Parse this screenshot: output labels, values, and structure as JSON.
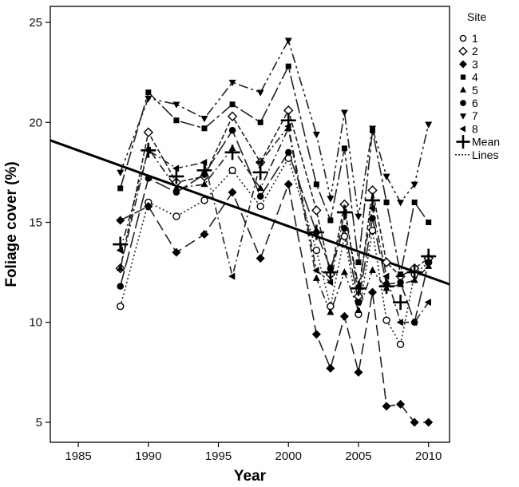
{
  "chart_data": {
    "type": "line",
    "xlabel": "Year",
    "ylabel": "Foliage cover (%)",
    "xlim": [
      1983,
      2011.5
    ],
    "ylim": [
      4,
      25.8
    ],
    "xticks": [
      1985,
      1990,
      1995,
      2000,
      2005,
      2010
    ],
    "yticks": [
      5,
      10,
      15,
      20,
      25
    ],
    "grid": false,
    "legend": {
      "title": "Site",
      "placement": "right",
      "line_label": "Lines"
    },
    "series": [
      {
        "name": "1",
        "marker": "open-circle",
        "dash": "2,3",
        "x": [
          1988,
          1990,
          1992,
          1994,
          1996,
          1998,
          2000,
          2002,
          2003,
          2004,
          2005,
          2006,
          2007,
          2008,
          2009,
          2010
        ],
        "y": [
          10.8,
          16.0,
          15.3,
          16.1,
          17.6,
          15.8,
          18.2,
          13.6,
          10.8,
          14.3,
          10.4,
          14.6,
          10.1,
          8.9,
          12.4,
          13.0
        ]
      },
      {
        "name": "2",
        "marker": "open-diamond",
        "dash": "6,3",
        "x": [
          1988,
          1990,
          1992,
          1994,
          1996,
          1998,
          2000,
          2002,
          2003,
          2004,
          2005,
          2006,
          2007,
          2008,
          2009,
          2010
        ],
        "y": [
          12.7,
          19.5,
          17.0,
          17.3,
          20.3,
          18.0,
          20.6,
          15.6,
          12.4,
          15.9,
          11.3,
          16.6,
          13.0,
          12.3,
          12.7,
          13.2
        ]
      },
      {
        "name": "3",
        "marker": "filled-diamond",
        "dash": "14,6",
        "x": [
          1988,
          1990,
          1992,
          1994,
          1996,
          1998,
          2000,
          2002,
          2003,
          2004,
          2005,
          2006,
          2007,
          2008,
          2009,
          2010
        ],
        "y": [
          15.1,
          15.8,
          13.5,
          14.4,
          16.5,
          13.2,
          16.9,
          9.4,
          7.7,
          10.3,
          7.5,
          11.5,
          5.8,
          5.9,
          5.0,
          5.0
        ]
      },
      {
        "name": "4",
        "marker": "filled-square",
        "dash": "18,4,4,4",
        "x": [
          1988,
          1990,
          1992,
          1994,
          1996,
          1998,
          2000,
          2002,
          2003,
          2004,
          2005,
          2006,
          2007,
          2008,
          2009,
          2010
        ],
        "y": [
          16.7,
          21.5,
          20.1,
          19.7,
          20.9,
          20.0,
          22.8,
          16.9,
          15.1,
          18.7,
          13.0,
          19.6,
          16.0,
          12.4,
          16.0,
          15.0
        ]
      },
      {
        "name": "5",
        "marker": "filled-triangle-up",
        "dash": "10,4,2,4",
        "x": [
          1988,
          1990,
          1992,
          1994,
          1996,
          1998,
          2000,
          2002,
          2003,
          2004,
          2005,
          2006,
          2007,
          2008,
          2009,
          2010
        ],
        "y": [
          12.7,
          18.7,
          16.7,
          16.9,
          18.7,
          16.7,
          19.7,
          12.2,
          10.5,
          12.5,
          10.6,
          12.6,
          11.7,
          11.9,
          12.1,
          12.8
        ]
      },
      {
        "name": "6",
        "marker": "filled-circle",
        "dash": "20,5",
        "x": [
          1988,
          1990,
          1992,
          1994,
          1996,
          1998,
          2000,
          2002,
          2003,
          2004,
          2005,
          2006,
          2007,
          2008,
          2009,
          2010
        ],
        "y": [
          11.8,
          17.2,
          16.5,
          17.4,
          19.6,
          16.3,
          18.5,
          14.5,
          12.7,
          14.7,
          11.0,
          15.2,
          11.9,
          12.0,
          10.0,
          13.0
        ]
      },
      {
        "name": "7",
        "marker": "filled-triangle-down",
        "dash": "12,4,3,4,3,4",
        "x": [
          1988,
          1990,
          1992,
          1994,
          1996,
          1998,
          2000,
          2002,
          2003,
          2004,
          2005,
          2006,
          2007,
          2008,
          2009,
          2010
        ],
        "y": [
          17.5,
          21.2,
          20.9,
          20.2,
          22.0,
          21.5,
          24.1,
          19.4,
          16.2,
          20.5,
          15.3,
          19.7,
          17.3,
          16.0,
          16.9,
          19.9
        ]
      },
      {
        "name": "8",
        "marker": "filled-triangle-left",
        "dash": "9,4,2,4",
        "x": [
          1988,
          1990,
          1992,
          1994,
          1996,
          1998,
          2000,
          2002,
          2003,
          2004,
          2005,
          2006,
          2007,
          2008,
          2009,
          2010
        ],
        "y": [
          13.6,
          18.6,
          17.7,
          18.0,
          12.3,
          18.0,
          19.8,
          12.6,
          12.0,
          15.5,
          11.8,
          15.7,
          12.3,
          10.0,
          10.0,
          11.0
        ]
      },
      {
        "name": "Mean",
        "marker": "plus",
        "dash": "",
        "x": [
          1988,
          1990,
          1992,
          1994,
          1996,
          1998,
          2000,
          2002,
          2003,
          2004,
          2005,
          2006,
          2007,
          2008,
          2009,
          2010
        ],
        "y": [
          13.9,
          18.6,
          17.3,
          17.6,
          18.5,
          17.5,
          20.1,
          14.5,
          12.5,
          15.5,
          11.7,
          16.1,
          11.8,
          11.0,
          12.5,
          13.3
        ]
      }
    ],
    "trend_line": {
      "x": [
        1983,
        2011.5
      ],
      "y": [
        19.1,
        11.9
      ]
    }
  }
}
